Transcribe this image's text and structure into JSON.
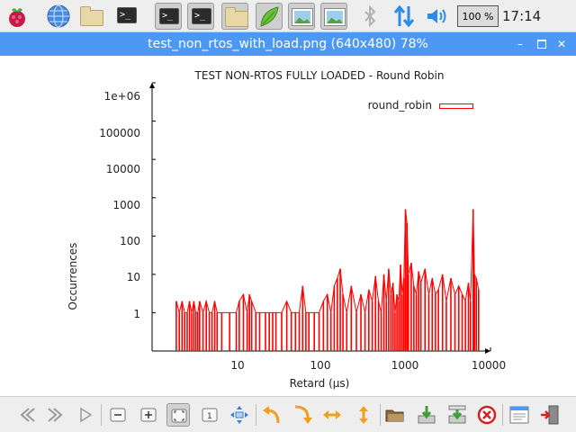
{
  "taskbar": {
    "apps": [
      "raspberry-menu",
      "web-browser",
      "file-manager",
      "terminal",
      "terminal",
      "terminal",
      "file-manager",
      "text-editor",
      "image-viewer",
      "image-viewer"
    ],
    "zoom_text": "100 %",
    "clock": "17:14"
  },
  "window": {
    "title": "test_non_rtos_with_load.png (640x480) 78%",
    "title_color": "#4d98f5"
  },
  "chart_data": {
    "type": "line",
    "title": "TEST NON-RTOS FULLY LOADED - Round Robin",
    "xlabel": "Retard (µs)",
    "ylabel": "Occurrences",
    "x_scale": "log",
    "y_scale": "log",
    "xlim": [
      4,
      10000
    ],
    "ylim": [
      0.1,
      1000000
    ],
    "x_ticks": [
      "10",
      "100",
      "1000",
      "10000"
    ],
    "y_ticks": [
      "1e+06",
      "100000",
      "10000",
      "1000",
      "100",
      "10",
      "1"
    ],
    "legend_position": "top-right",
    "series": [
      {
        "name": "round_robin",
        "color": "#ff0000",
        "points": [
          [
            7,
            2
          ],
          [
            7.5,
            1
          ],
          [
            8,
            2
          ],
          [
            8.5,
            1
          ],
          [
            9,
            1
          ],
          [
            9.5,
            2
          ],
          [
            10,
            1
          ],
          [
            10.5,
            2
          ],
          [
            11,
            1
          ],
          [
            11.5,
            1
          ],
          [
            12,
            2
          ],
          [
            13,
            1
          ],
          [
            14,
            2
          ],
          [
            15,
            1
          ],
          [
            16,
            1
          ],
          [
            17,
            2
          ],
          [
            18,
            1
          ],
          [
            20,
            1
          ],
          [
            24,
            1
          ],
          [
            28,
            1
          ],
          [
            30,
            2
          ],
          [
            33,
            3
          ],
          [
            36,
            1
          ],
          [
            38,
            3
          ],
          [
            40,
            2
          ],
          [
            44,
            1
          ],
          [
            48,
            1
          ],
          [
            55,
            1
          ],
          [
            60,
            1
          ],
          [
            65,
            1
          ],
          [
            70,
            1
          ],
          [
            80,
            1
          ],
          [
            90,
            2
          ],
          [
            100,
            1
          ],
          [
            110,
            1
          ],
          [
            120,
            1
          ],
          [
            130,
            5
          ],
          [
            140,
            1
          ],
          [
            150,
            1
          ],
          [
            170,
            1
          ],
          [
            190,
            1
          ],
          [
            210,
            2
          ],
          [
            230,
            3
          ],
          [
            250,
            1
          ],
          [
            270,
            5
          ],
          [
            290,
            8
          ],
          [
            310,
            14
          ],
          [
            330,
            3
          ],
          [
            360,
            1
          ],
          [
            400,
            5
          ],
          [
            450,
            1
          ],
          [
            500,
            3
          ],
          [
            550,
            1
          ],
          [
            600,
            4
          ],
          [
            650,
            2
          ],
          [
            700,
            9
          ],
          [
            750,
            2
          ],
          [
            800,
            1
          ],
          [
            850,
            10
          ],
          [
            900,
            2
          ],
          [
            950,
            14
          ],
          [
            1000,
            3
          ],
          [
            1050,
            6
          ],
          [
            1100,
            1
          ],
          [
            1150,
            3
          ],
          [
            1200,
            2
          ],
          [
            1250,
            18
          ],
          [
            1300,
            3
          ],
          [
            1350,
            8
          ],
          [
            1400,
            500
          ],
          [
            1450,
            220
          ],
          [
            1500,
            10
          ],
          [
            1600,
            20
          ],
          [
            1700,
            5
          ],
          [
            1800,
            3
          ],
          [
            1900,
            12
          ],
          [
            2000,
            6
          ],
          [
            2200,
            14
          ],
          [
            2400,
            3
          ],
          [
            2600,
            8
          ],
          [
            2800,
            3
          ],
          [
            3000,
            4
          ],
          [
            3300,
            10
          ],
          [
            3600,
            2
          ],
          [
            4000,
            8
          ],
          [
            4400,
            3
          ],
          [
            4800,
            5
          ],
          [
            5200,
            3
          ],
          [
            5600,
            2
          ],
          [
            6000,
            6
          ],
          [
            6300,
            2
          ],
          [
            6700,
            500
          ],
          [
            6900,
            10
          ],
          [
            7200,
            8
          ],
          [
            7600,
            4
          ]
        ]
      }
    ]
  },
  "toolbar": {
    "buttons": [
      "previous",
      "next",
      "play-slideshow",
      "zoom-out",
      "zoom-in",
      "fit-window",
      "original-size",
      "fullscreen",
      "rotate-left",
      "rotate-right",
      "flip-horizontal",
      "flip-vertical",
      "open-file",
      "save-file",
      "save-as",
      "delete",
      "preferences",
      "quit"
    ]
  }
}
